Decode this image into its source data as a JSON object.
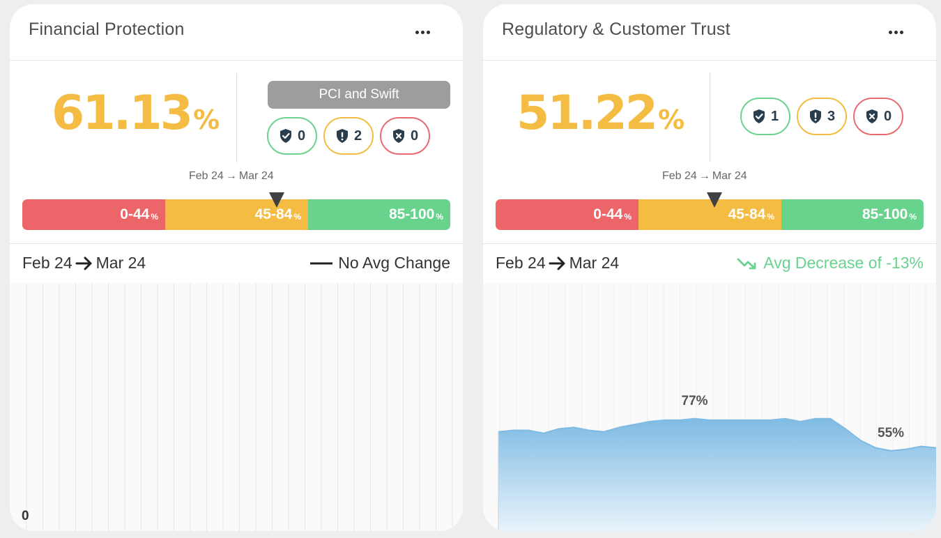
{
  "cards": [
    {
      "title": "Financial Protection",
      "score": "61.13",
      "score_unit": "%",
      "group_label": "PCI and Swift",
      "counts": {
        "pass": "0",
        "warn": "2",
        "fail": "0"
      },
      "range_caption": {
        "from": "Feb 24",
        "to": "Mar 24"
      },
      "marker_value": 61.13,
      "scale": [
        {
          "label": "0-44",
          "unit": "%"
        },
        {
          "label": "45-84",
          "unit": "%"
        },
        {
          "label": "85-100",
          "unit": "%"
        }
      ],
      "trend": {
        "from": "Feb 24",
        "to": "Mar 24",
        "status": "No Avg Change"
      },
      "chart_zero_label": "0"
    },
    {
      "title": "Regulatory & Customer Trust",
      "score": "51.22",
      "score_unit": "%",
      "counts": {
        "pass": "1",
        "warn": "3",
        "fail": "0"
      },
      "range_caption": {
        "from": "Feb 24",
        "to": "Mar 24"
      },
      "marker_value": 51.22,
      "scale": [
        {
          "label": "0-44",
          "unit": "%"
        },
        {
          "label": "45-84",
          "unit": "%"
        },
        {
          "label": "85-100",
          "unit": "%"
        }
      ],
      "trend": {
        "from": "Feb 24",
        "to": "Mar 24",
        "status": "Avg Decrease of -13%"
      }
    }
  ],
  "colors": {
    "score": "#f4bc42",
    "red": "#ec6669",
    "yellow": "#f4bc42",
    "green": "#67d38c",
    "area": "#7fbbe3"
  },
  "chart_data": {
    "type": "area",
    "series": [
      {
        "values": [
          68,
          69,
          69,
          67,
          70,
          71,
          69,
          68,
          71,
          73,
          75,
          76,
          76,
          77,
          76,
          76,
          76,
          76,
          76,
          77,
          75,
          77,
          77,
          70,
          62,
          57,
          55,
          56,
          58,
          57
        ]
      }
    ],
    "annotations": [
      {
        "label": "77%",
        "index": 13
      },
      {
        "label": "55%",
        "index": 26
      }
    ],
    "ylim": [
      0,
      100
    ],
    "grid": "vertical"
  }
}
